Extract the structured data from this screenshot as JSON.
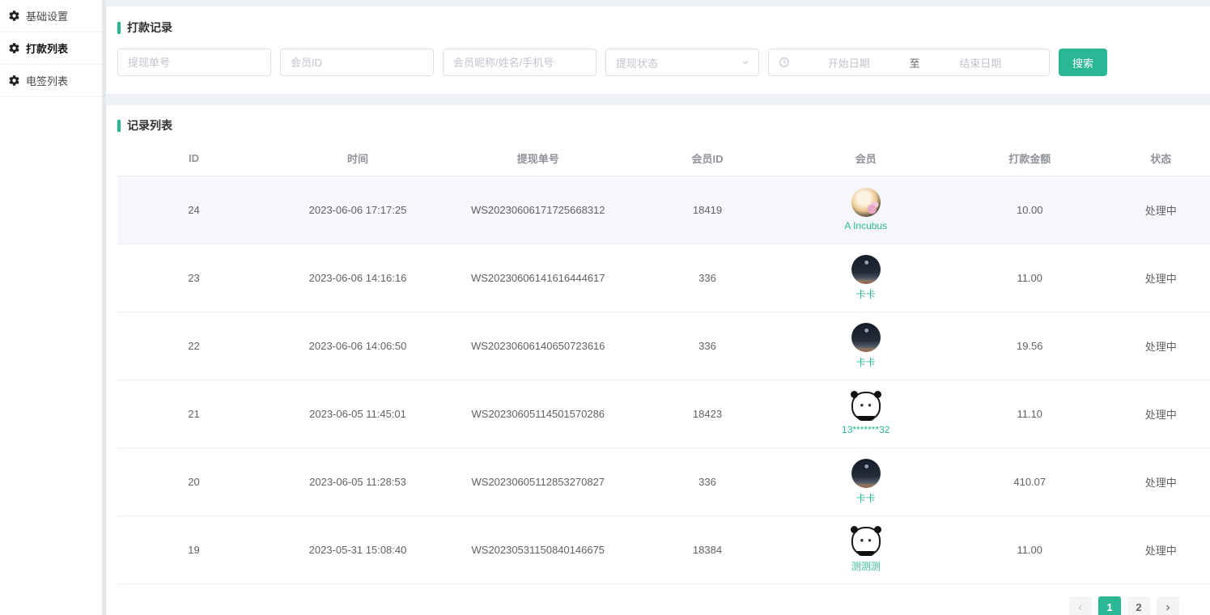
{
  "colors": {
    "accent": "#2bb796"
  },
  "sidebar": {
    "items": [
      {
        "label": "基础设置",
        "active": false
      },
      {
        "label": "打款列表",
        "active": true
      },
      {
        "label": "电签列表",
        "active": false
      }
    ]
  },
  "search_panel": {
    "title": "打款记录",
    "inputs": [
      {
        "placeholder": "提现单号"
      },
      {
        "placeholder": "会员ID"
      },
      {
        "placeholder": "会员昵称/姓名/手机号"
      }
    ],
    "status_select": {
      "placeholder": "提现状态"
    },
    "date_range": {
      "start_placeholder": "开始日期",
      "separator": "至",
      "end_placeholder": "结束日期"
    },
    "search_button": "搜索"
  },
  "record_panel": {
    "title": "记录列表",
    "columns": [
      "ID",
      "时间",
      "提现单号",
      "会员ID",
      "会员",
      "打款金额",
      "状态"
    ],
    "rows": [
      {
        "id": "24",
        "time": "2023-06-06 17:17:25",
        "order_no": "WS20230606171725668312",
        "member_id": "18419",
        "member_name": "A Incubus",
        "avatar": "dog",
        "amount": "10.00",
        "status": "处理中",
        "highlighted": true
      },
      {
        "id": "23",
        "time": "2023-06-06 14:16:16",
        "order_no": "WS20230606141616444617",
        "member_id": "336",
        "member_name": "卡卡",
        "avatar": "night",
        "amount": "11.00",
        "status": "处理中",
        "highlighted": false
      },
      {
        "id": "22",
        "time": "2023-06-06 14:06:50",
        "order_no": "WS20230606140650723616",
        "member_id": "336",
        "member_name": "卡卡",
        "avatar": "night",
        "amount": "19.56",
        "status": "处理中",
        "highlighted": false
      },
      {
        "id": "21",
        "time": "2023-06-05 11:45:01",
        "order_no": "WS20230605114501570286",
        "member_id": "18423",
        "member_name": "13*******32",
        "avatar": "panda",
        "amount": "11.10",
        "status": "处理中",
        "highlighted": false
      },
      {
        "id": "20",
        "time": "2023-06-05 11:28:53",
        "order_no": "WS20230605112853270827",
        "member_id": "336",
        "member_name": "卡卡",
        "avatar": "night",
        "amount": "410.07",
        "status": "处理中",
        "highlighted": false
      },
      {
        "id": "19",
        "time": "2023-05-31 15:08:40",
        "order_no": "WS20230531150840146675",
        "member_id": "18384",
        "member_name": "测测测",
        "avatar": "panda",
        "amount": "11.00",
        "status": "处理中",
        "highlighted": false
      }
    ],
    "pagination": {
      "pages": [
        "1",
        "2"
      ],
      "active_page": "1",
      "prev_disabled": true
    }
  }
}
